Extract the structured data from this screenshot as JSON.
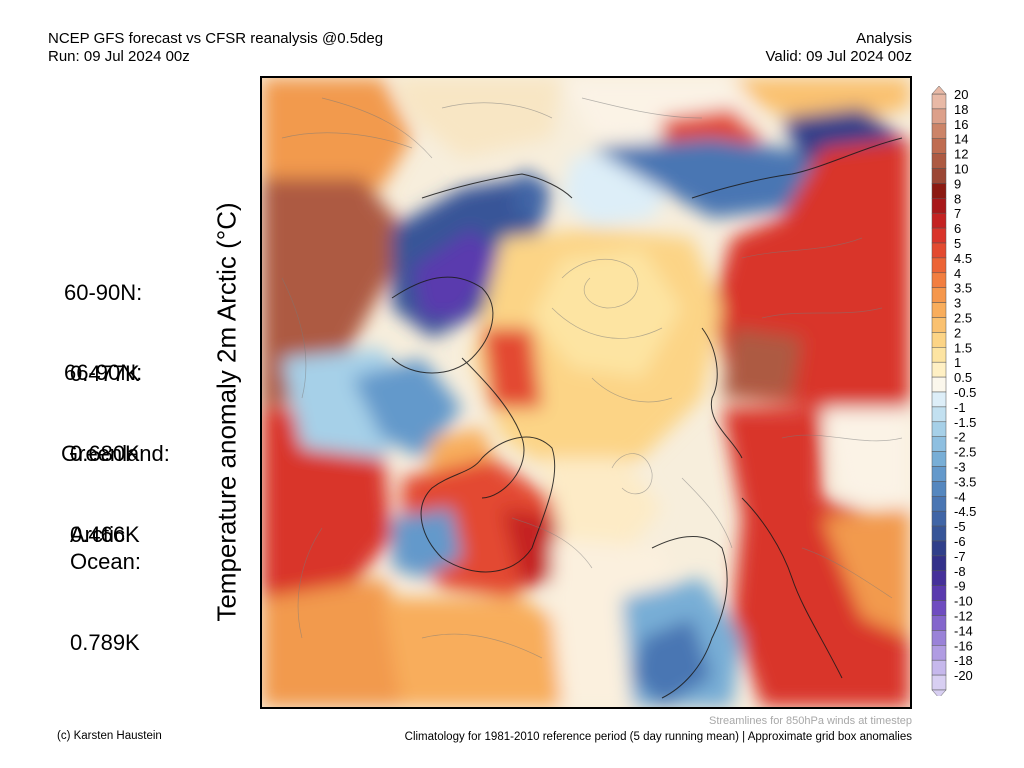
{
  "header": {
    "title_line1": "NCEP GFS forecast vs CFSR reanalysis @0.5deg",
    "title_line2": "Run: 09 Jul 2024 00z",
    "right_line1": "Analysis",
    "right_line2": "Valid: 09 Jul 2024 00z"
  },
  "y_axis_label": "Temperature anomaly 2m Arctic (°C)",
  "stats": [
    {
      "label": "60-90N:",
      "value": "0.477K"
    },
    {
      "label": "66-90N:",
      "value": "0.680K"
    },
    {
      "label": "Greenland:",
      "value": "0.466K"
    },
    {
      "label": "Arctic\nOcean:",
      "value": "0.789K"
    }
  ],
  "colorbar": {
    "labels": [
      "20",
      "18",
      "16",
      "14",
      "12",
      "10",
      "9",
      "8",
      "7",
      "6",
      "5",
      "4.5",
      "4",
      "3.5",
      "3",
      "2.5",
      "2",
      "1.5",
      "1",
      "0.5",
      "-0.5",
      "-1",
      "-1.5",
      "-2",
      "-2.5",
      "-3",
      "-3.5",
      "-4",
      "-4.5",
      "-5",
      "-6",
      "-7",
      "-8",
      "-9",
      "-10",
      "-12",
      "-14",
      "-16",
      "-18",
      "-20"
    ],
    "colors": [
      "#e8b9a6",
      "#dca08a",
      "#cc8468",
      "#bf6c50",
      "#ad5a42",
      "#9b4735",
      "#8c1a12",
      "#a8181a",
      "#c42222",
      "#d9342a",
      "#e34a30",
      "#ec6436",
      "#f27e40",
      "#f5974c",
      "#f8ad5c",
      "#fac170",
      "#fcd486",
      "#fde4a2",
      "#fff0c4",
      "#fbf7ec",
      "#ddeef8",
      "#c2e0f0",
      "#a6d0e8",
      "#8ebfe0",
      "#78aed6",
      "#6499cb",
      "#5587bf",
      "#4a76b3",
      "#4065a6",
      "#375598",
      "#303f8a",
      "#33308a",
      "#45309a",
      "#5a3aae",
      "#6f4cc0",
      "#8466cc",
      "#9a82d8",
      "#b09ce2",
      "#c6b8ec",
      "#d8cff2"
    ],
    "bottom_arrow_color": "#d8cff2"
  },
  "footer": {
    "credit": "(c) Karsten Haustein",
    "streamlines_note": "Streamlines for 850hPa winds at timestep",
    "climatology_note": "Climatology for 1981-2010 reference period (5 day running mean) | Approximate grid box anomalies"
  }
}
